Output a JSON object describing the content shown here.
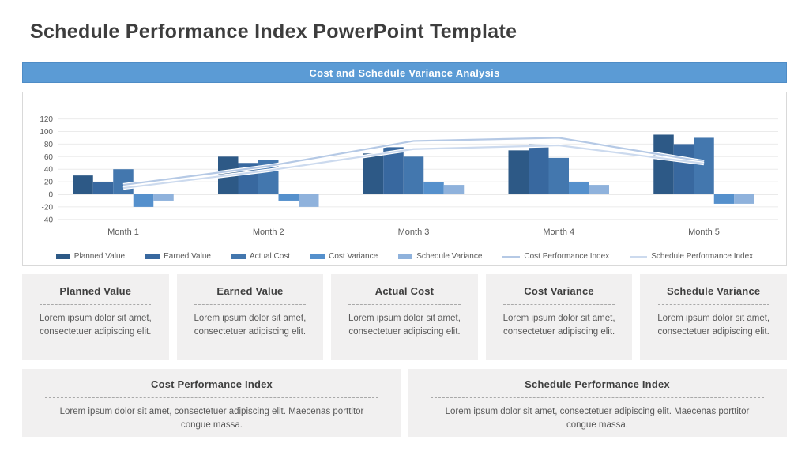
{
  "page": {
    "title": "Schedule Performance Index PowerPoint Template"
  },
  "banner": {
    "title": "Cost and Schedule Variance Analysis",
    "bg_color": "#5b9bd5"
  },
  "chart_data": {
    "type": "bar+line",
    "title": "Cost and Schedule Variance Analysis",
    "categories": [
      "Month 1",
      "Month 2",
      "Month 3",
      "Month 4",
      "Month 5"
    ],
    "ylim": [
      -40,
      120
    ],
    "ytick_step": 20,
    "grid": true,
    "legend_position": "bottom",
    "series": [
      {
        "name": "Planned Value",
        "type": "bar",
        "color": "#2d5986",
        "values": [
          30,
          60,
          65,
          70,
          95
        ]
      },
      {
        "name": "Earned Value",
        "type": "bar",
        "color": "#38689f",
        "values": [
          20,
          50,
          75,
          80,
          80
        ]
      },
      {
        "name": "Actual Cost",
        "type": "bar",
        "color": "#4377ae",
        "values": [
          40,
          55,
          60,
          58,
          90
        ]
      },
      {
        "name": "Cost Variance",
        "type": "bar",
        "color": "#5590cc",
        "values": [
          -20,
          -10,
          20,
          20,
          -15
        ]
      },
      {
        "name": "Schedule Variance",
        "type": "bar",
        "color": "#8fb2dc",
        "values": [
          -10,
          -20,
          15,
          15,
          -15
        ]
      },
      {
        "name": "Cost Performance Index",
        "type": "line",
        "color": "#b5c9e5",
        "values": [
          15,
          45,
          85,
          90,
          52
        ]
      },
      {
        "name": "Schedule Performance Index",
        "type": "line",
        "color": "#ccdaee",
        "values": [
          10,
          38,
          72,
          78,
          49
        ]
      }
    ]
  },
  "cards": [
    {
      "title": "Planned Value",
      "body": "Lorem ipsum dolor sit amet, consectetuer adipiscing elit."
    },
    {
      "title": "Earned Value",
      "body": "Lorem ipsum dolor sit amet, consectetuer adipiscing elit."
    },
    {
      "title": "Actual Cost",
      "body": "Lorem ipsum dolor sit amet, consectetuer adipiscing elit."
    },
    {
      "title": "Cost Variance",
      "body": "Lorem ipsum dolor sit amet, consectetuer adipiscing elit."
    },
    {
      "title": "Schedule Variance",
      "body": "Lorem ipsum dolor sit amet, consectetuer adipiscing elit."
    }
  ],
  "wide_cards": [
    {
      "title": "Cost Performance Index",
      "body": "Lorem ipsum dolor sit amet, consectetuer adipiscing elit. Maecenas porttitor congue massa."
    },
    {
      "title": "Schedule Performance Index",
      "body": "Lorem ipsum dolor sit amet, consectetuer adipiscing elit. Maecenas porttitor congue massa."
    }
  ]
}
